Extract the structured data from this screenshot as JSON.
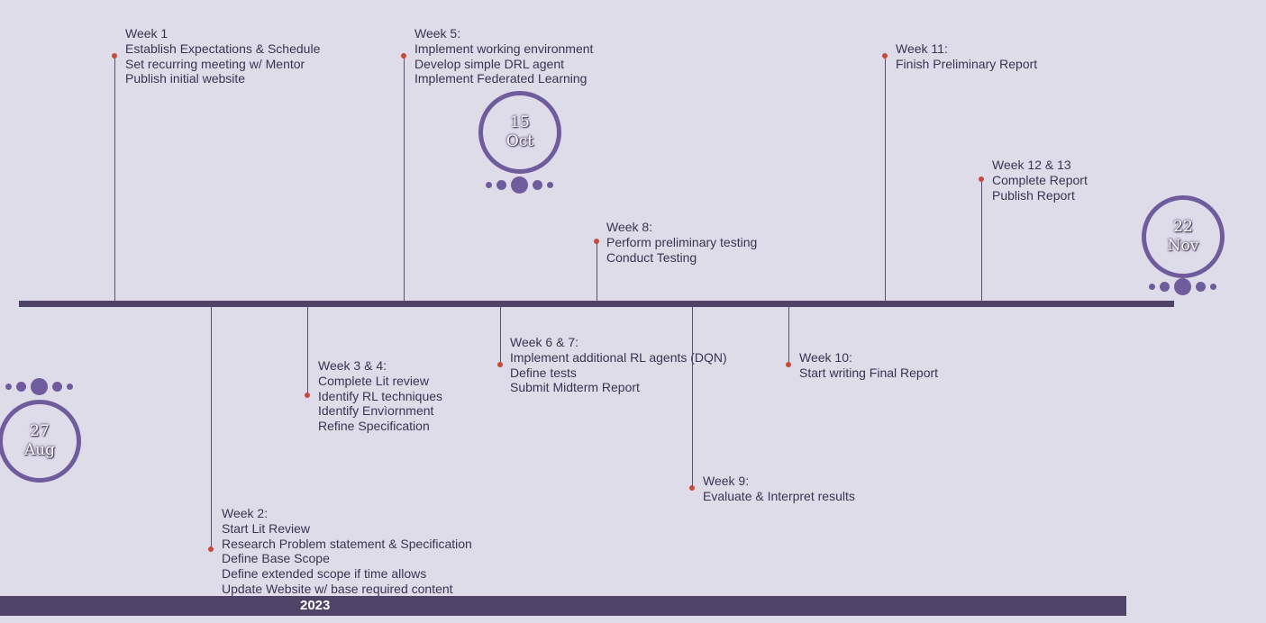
{
  "dates": {
    "start": {
      "day": "27",
      "month": "Aug"
    },
    "mid": {
      "day": "15",
      "month": "Oct"
    },
    "end": {
      "day": "22",
      "month": "Nov"
    }
  },
  "milestones": {
    "w1": {
      "title": "Week 1",
      "items": [
        "Establish Expectations & Schedule",
        "Set recurring meeting w/ Mentor",
        "Publish initial website"
      ]
    },
    "w2": {
      "title": "Week 2:",
      "items": [
        "Start Lit Review",
        "Research Problem statement & Specification",
        "Define Base Scope",
        "Define extended scope if time allows",
        "Update Website w/ base required content"
      ]
    },
    "w34": {
      "title": "Week 3 & 4:",
      "items": [
        "Complete Lit review",
        "Identify RL techniques",
        "Identify Envìornment",
        "Refine Specification"
      ]
    },
    "w5": {
      "title": "Week 5:",
      "items": [
        "Implement working environment",
        "Develop simple DRL agent",
        "Implement Federated Learning"
      ]
    },
    "w67": {
      "title": "Week 6 & 7:",
      "items": [
        "Implement additional RL agents (DQN)",
        "Define tests",
        "Submit Midterm Report"
      ]
    },
    "w8": {
      "title": "Week 8:",
      "items": [
        "Perform preliminary testing",
        "Conduct Testing"
      ]
    },
    "w9": {
      "title": "Week 9:",
      "items": [
        "Evaluate & Interpret results"
      ]
    },
    "w10": {
      "title": "Week 10:",
      "items": [
        "Start writing Final Report"
      ]
    },
    "w11": {
      "title": "Week 11:",
      "items": [
        "Finish Preliminary Report"
      ]
    },
    "w1213": {
      "title": "Week 12 & 13",
      "items": [
        "Complete Report",
        "Publish Report"
      ]
    }
  },
  "year": "2023",
  "colors": {
    "axis": "#4f4468",
    "accent": "#6e5c9c",
    "marker": "#c94a3b",
    "background": "#dfdcea",
    "text": "#3a3350"
  }
}
